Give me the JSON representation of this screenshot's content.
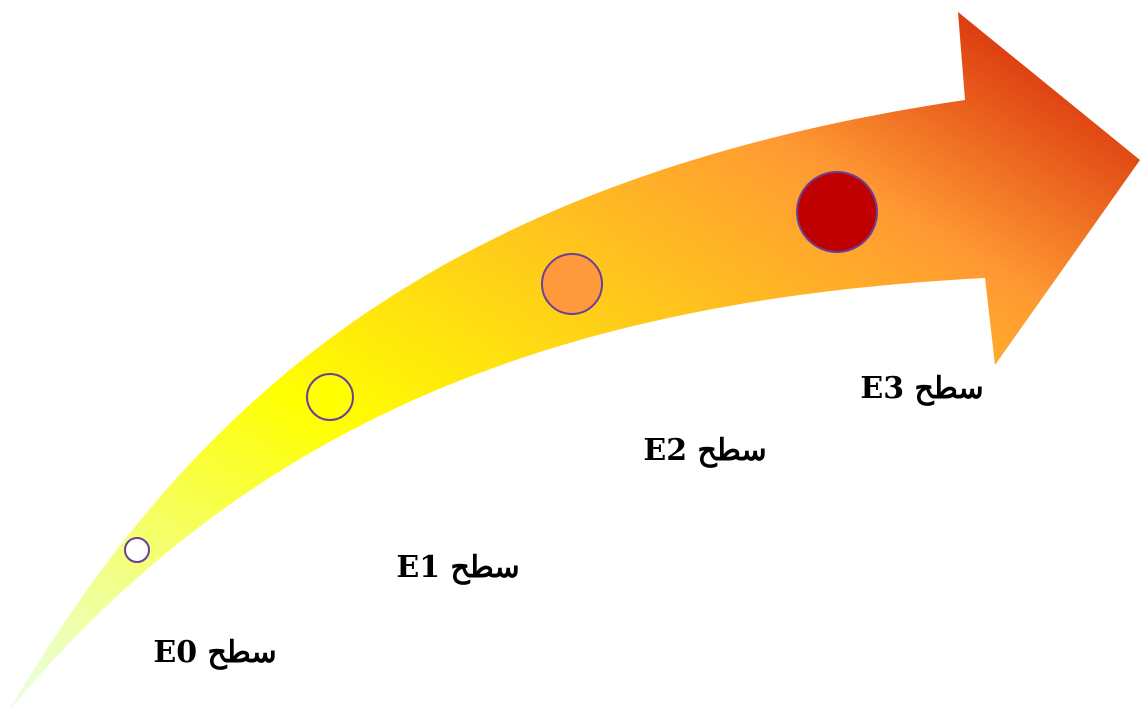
{
  "diagram": {
    "levels": [
      {
        "id": "E0",
        "label": "سطح E0",
        "marker_fill": "#ffffff",
        "marker_stroke": "#6a3f9a"
      },
      {
        "id": "E1",
        "label": "سطح E1",
        "marker_fill": "#ffff00",
        "marker_stroke": "#6a3f9a"
      },
      {
        "id": "E2",
        "label": "سطح E2",
        "marker_fill": "#ff9a3c",
        "marker_stroke": "#6a3f9a"
      },
      {
        "id": "E3",
        "label": "سطح E3",
        "marker_fill": "#c00000",
        "marker_stroke": "#6a3f9a"
      }
    ],
    "arrow_colors": {
      "tail": "#e8ffe8",
      "mid": "#ffff00",
      "upper": "#ff9933",
      "head": "#cc1100"
    }
  }
}
